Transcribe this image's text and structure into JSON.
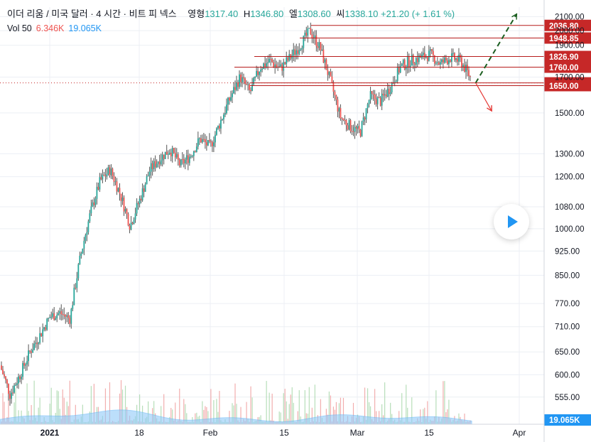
{
  "header": {
    "symbol": "이더 리움 / 미국 달러 · 4 시간 · 비트 피 넥스",
    "open_label": "영형",
    "open": "1317.40",
    "high_label": "H",
    "high": "1346.80",
    "low_label": "엘",
    "low": "1308.60",
    "close_label": "씨",
    "close": "1338.10",
    "change": "+21.20 (+ 1.61 %)"
  },
  "volume": {
    "label": "Vol 50",
    "value_1": "6.346K",
    "value_2": "19.065K"
  },
  "colors": {
    "up": "#26a69a",
    "down": "#ef5350",
    "wick": "#555555",
    "level_line": "#b71c1c",
    "level_tag": "#c62828",
    "vol_area": "#90caf9",
    "vol_tag": "#2196f3",
    "grid": "#eceff4",
    "forecast_up": "#1b5e20",
    "forecast_down": "#e53935"
  },
  "chart_data": {
    "type": "candlestick",
    "timeframe": "4h",
    "scale": "log",
    "ylim": [
      520,
      2150
    ],
    "x_ticks": [
      "2021",
      "18",
      "Feb",
      "15",
      "Mar",
      "15",
      "Apr"
    ],
    "y_ticks": [
      "2100.00",
      "2000.00",
      "1900.00",
      "1700.00",
      "1500.00",
      "1300.00",
      "1200.00",
      "1080.00",
      "1000.00",
      "925.00",
      "850.00",
      "770.00",
      "710.00",
      "650.00",
      "600.00",
      "555.00"
    ],
    "horizontal_levels": [
      "2036.80",
      "1948.85",
      "1826.90",
      "1760.00",
      "1666.00",
      "1650.00"
    ],
    "current_price_tag": "1666.00",
    "volume_tag": "19.065K",
    "price_path": [
      [
        0,
        620
      ],
      [
        1,
        560
      ],
      [
        2,
        600
      ],
      [
        3,
        650
      ],
      [
        4,
        690
      ],
      [
        5,
        735
      ],
      [
        6,
        745
      ],
      [
        7,
        730
      ],
      [
        8,
        900
      ],
      [
        9,
        1050
      ],
      [
        10,
        1180
      ],
      [
        11,
        1230
      ],
      [
        12,
        1130
      ],
      [
        13,
        1010
      ],
      [
        14,
        1110
      ],
      [
        15,
        1230
      ],
      [
        16,
        1280
      ],
      [
        17,
        1320
      ],
      [
        18,
        1250
      ],
      [
        19,
        1290
      ],
      [
        20,
        1370
      ],
      [
        21,
        1330
      ],
      [
        22,
        1450
      ],
      [
        23,
        1580
      ],
      [
        24,
        1700
      ],
      [
        25,
        1610
      ],
      [
        26,
        1760
      ],
      [
        27,
        1800
      ],
      [
        28,
        1750
      ],
      [
        29,
        1820
      ],
      [
        30,
        1900
      ],
      [
        31,
        2000
      ],
      [
        32,
        1880
      ],
      [
        33,
        1680
      ],
      [
        34,
        1480
      ],
      [
        35,
        1430
      ],
      [
        36,
        1400
      ],
      [
        37,
        1590
      ],
      [
        38,
        1560
      ],
      [
        39,
        1640
      ],
      [
        40,
        1760
      ],
      [
        41,
        1800
      ],
      [
        42,
        1820
      ],
      [
        43,
        1840
      ],
      [
        44,
        1780
      ],
      [
        45,
        1820
      ],
      [
        46,
        1800
      ],
      [
        47,
        1700
      ]
    ],
    "forecast": [
      {
        "direction": "up",
        "from": [
          47.4,
          1666
        ],
        "to": [
          51.5,
          2120
        ]
      },
      {
        "direction": "down",
        "from": [
          47.4,
          1666
        ],
        "to": [
          49.0,
          1510
        ]
      }
    ]
  }
}
